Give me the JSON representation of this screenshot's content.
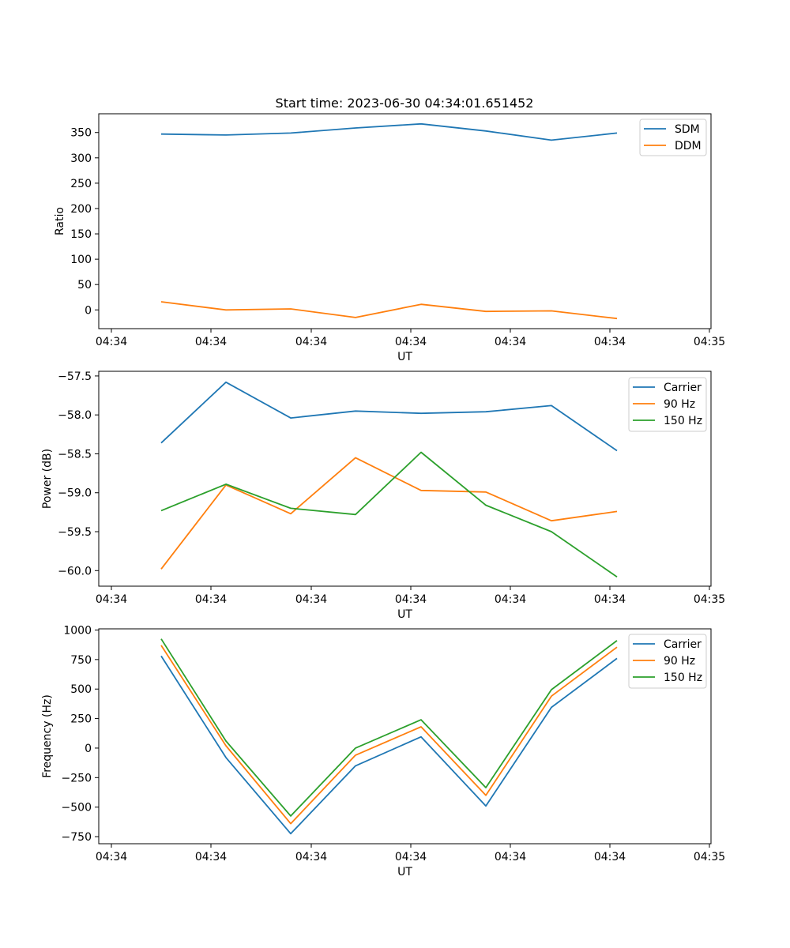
{
  "title": "Start time: 2023-06-30 04:34:01.651452",
  "colors": {
    "c1": "#1f77b4",
    "c2": "#ff7f0e",
    "c3": "#2ca02c"
  },
  "chart_data": [
    {
      "type": "line",
      "ylabel": "Ratio",
      "xlabel": "UT",
      "x_ticks": [
        "04:34",
        "04:34",
        "04:34",
        "04:34",
        "04:34",
        "04:34",
        "04:35"
      ],
      "y_ticks": [
        0,
        50,
        100,
        150,
        200,
        250,
        300,
        350
      ],
      "ylim": [
        -37,
        387
      ],
      "legend_location": "top-right",
      "series": [
        {
          "name": "SDM",
          "color": "#1f77b4",
          "values": [
            347,
            345,
            349,
            359,
            367,
            353,
            335,
            349
          ]
        },
        {
          "name": "DDM",
          "color": "#ff7f0e",
          "values": [
            16,
            0,
            2,
            -15,
            11,
            -3,
            -2,
            -17
          ]
        }
      ]
    },
    {
      "type": "line",
      "ylabel": "Power (dB)",
      "xlabel": "UT",
      "x_ticks": [
        "04:34",
        "04:34",
        "04:34",
        "04:34",
        "04:34",
        "04:34",
        "04:35"
      ],
      "y_ticks": [
        -57.5,
        -58.0,
        -58.5,
        -59.0,
        -59.5,
        -60.0
      ],
      "y_tick_labels": [
        "−57.5",
        "−58.0",
        "−58.5",
        "−59.0",
        "−59.5",
        "−60.0"
      ],
      "ylim": [
        -60.2,
        -57.44
      ],
      "legend_location": "top-right",
      "series": [
        {
          "name": "Carrier",
          "color": "#1f77b4",
          "values": [
            -58.36,
            -57.58,
            -58.04,
            -57.95,
            -57.98,
            -57.96,
            -57.88,
            -58.46
          ]
        },
        {
          "name": "90 Hz",
          "color": "#ff7f0e",
          "values": [
            -59.98,
            -58.9,
            -59.27,
            -58.55,
            -58.97,
            -58.99,
            -59.36,
            -59.24
          ]
        },
        {
          "name": "150 Hz",
          "color": "#2ca02c",
          "values": [
            -59.23,
            -58.89,
            -59.2,
            -59.28,
            -58.48,
            -59.16,
            -59.5,
            -60.08
          ]
        }
      ]
    },
    {
      "type": "line",
      "ylabel": "Frequency (Hz)",
      "xlabel": "UT",
      "x_ticks": [
        "04:34",
        "04:34",
        "04:34",
        "04:34",
        "04:34",
        "04:34",
        "04:35"
      ],
      "y_ticks": [
        1000,
        750,
        500,
        250,
        0,
        -250,
        -500,
        -750
      ],
      "y_tick_labels": [
        "1000",
        "750",
        "500",
        "250",
        "0",
        "−250",
        "−500",
        "−750"
      ],
      "ylim": [
        -810,
        1010
      ],
      "legend_location": "top-right",
      "series": [
        {
          "name": "Carrier",
          "color": "#1f77b4",
          "values": [
            780,
            -80,
            -725,
            -150,
            95,
            -490,
            345,
            760
          ]
        },
        {
          "name": "90 Hz",
          "color": "#ff7f0e",
          "values": [
            870,
            20,
            -640,
            -60,
            180,
            -400,
            440,
            855
          ]
        },
        {
          "name": "150 Hz",
          "color": "#2ca02c",
          "values": [
            925,
            60,
            -575,
            0,
            240,
            -335,
            495,
            910
          ]
        }
      ]
    }
  ]
}
